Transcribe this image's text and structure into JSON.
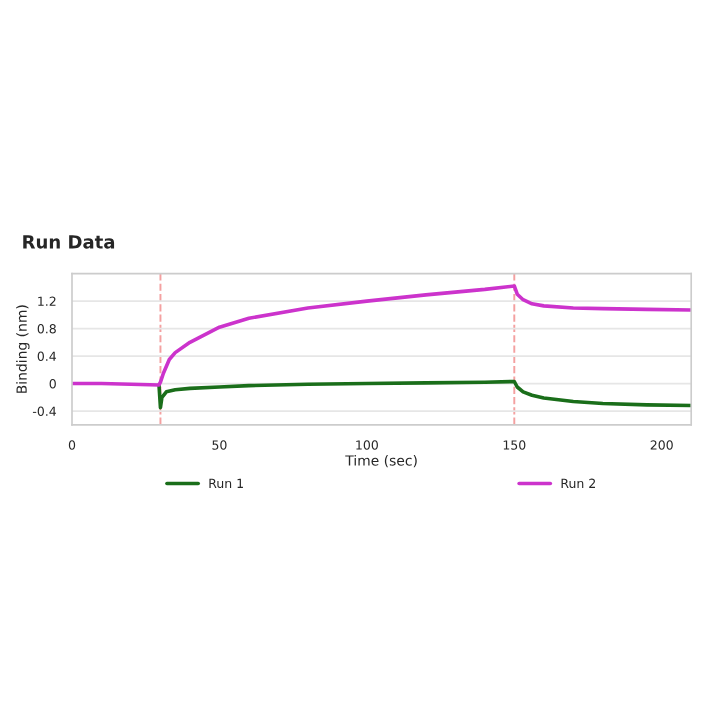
{
  "chart_data": {
    "type": "line",
    "title": "Run Data",
    "xlabel": "Time (sec)",
    "ylabel": "Binding (nm)",
    "xlim": [
      0,
      210
    ],
    "xticks": [
      0,
      50,
      100,
      150,
      200
    ],
    "ylim": [
      -0.6,
      1.6
    ],
    "yticks": [
      -0.4,
      0,
      0.4,
      0.8,
      1.2
    ],
    "grid": "y",
    "legend": "bottom",
    "line_style": "solid",
    "marker": "none",
    "ref_lines": [
      {
        "axis": "x",
        "value": 30,
        "color": "#f4a0a0",
        "line_style": "dashed"
      },
      {
        "axis": "x",
        "value": 150,
        "color": "#f4a0a0",
        "line_style": "dashed"
      }
    ],
    "series": [
      {
        "name": "Run 1",
        "color": "#1a6e1a",
        "x": [
          29.5,
          30,
          30.5,
          32,
          35,
          40,
          50,
          60,
          80,
          100,
          120,
          140,
          150,
          151,
          153,
          156,
          160,
          170,
          180,
          195,
          210
        ],
        "values": [
          -0.02,
          -0.35,
          -0.2,
          -0.12,
          -0.09,
          -0.07,
          -0.05,
          -0.03,
          -0.01,
          0,
          0.01,
          0.02,
          0.03,
          -0.05,
          -0.12,
          -0.17,
          -0.21,
          -0.26,
          -0.29,
          -0.31,
          -0.32
        ]
      },
      {
        "name": "Run 2",
        "color": "#cc33cc",
        "x": [
          0,
          10,
          20,
          29.5,
          30,
          31,
          33,
          35,
          40,
          50,
          60,
          80,
          100,
          120,
          140,
          150,
          151,
          153,
          156,
          160,
          170,
          180,
          195,
          210
        ],
        "values": [
          0,
          0,
          -0.01,
          -0.02,
          0.02,
          0.15,
          0.35,
          0.45,
          0.6,
          0.82,
          0.95,
          1.1,
          1.2,
          1.29,
          1.37,
          1.42,
          1.3,
          1.22,
          1.16,
          1.13,
          1.1,
          1.09,
          1.08,
          1.07
        ]
      }
    ]
  }
}
